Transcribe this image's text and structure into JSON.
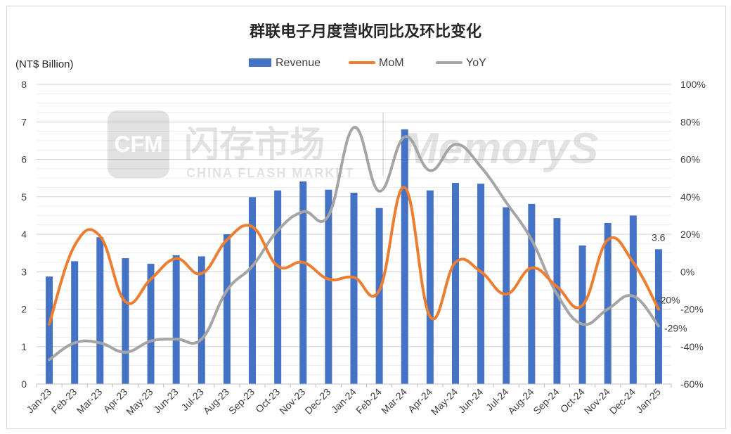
{
  "chart_data": {
    "type": "bar",
    "title": "群联电子月度营收同比及环比变化",
    "ylabel_left": "(NT$ Billion)",
    "categories": [
      "Jan-23",
      "Feb-23",
      "Mar-23",
      "Apr-23",
      "May-23",
      "Jun-23",
      "Jul-23",
      "Aug-23",
      "Sep-23",
      "Oct-23",
      "Nov-23",
      "Dec-23",
      "Jan-24",
      "Feb-24",
      "Mar-24",
      "Apr-24",
      "May-24",
      "Jun-24",
      "Jul-24",
      "Aug-24",
      "Sep-24",
      "Oct-24",
      "Nov-24",
      "Dec-24",
      "Jan-25"
    ],
    "series": [
      {
        "name": "Revenue",
        "type": "bar",
        "axis": "left",
        "color": "#4472c4",
        "values": [
          2.87,
          3.28,
          3.92,
          3.36,
          3.21,
          3.44,
          3.41,
          4.0,
          4.99,
          5.17,
          5.41,
          5.19,
          5.11,
          4.7,
          6.8,
          5.17,
          5.37,
          5.35,
          4.72,
          4.81,
          4.43,
          3.7,
          4.3,
          4.5,
          3.6
        ]
      },
      {
        "name": "MoM",
        "type": "line",
        "axis": "right",
        "color": "#ed7d31",
        "values": [
          -28,
          14,
          19,
          -16,
          -4,
          7,
          -1,
          17,
          24,
          3,
          5,
          -4,
          -3,
          -10,
          45,
          -24,
          5,
          0,
          -12,
          2,
          -8,
          -18,
          17,
          5,
          -20
        ]
      },
      {
        "name": "YoY",
        "type": "line",
        "axis": "right",
        "color": "#a5a5a5",
        "values": [
          -47,
          -38,
          -38,
          -43,
          -37,
          -36,
          -36,
          -10,
          3,
          22,
          32,
          30,
          77,
          43,
          72,
          54,
          68,
          56,
          37,
          17,
          -12,
          -28,
          -20,
          -13,
          -29
        ]
      }
    ],
    "ylim_left": [
      0,
      8
    ],
    "yticks_left": [
      "0",
      "1",
      "2",
      "3",
      "4",
      "5",
      "6",
      "7",
      "8"
    ],
    "ylim_right": [
      -60,
      100
    ],
    "yticks_right": [
      "-60%",
      "-40%",
      "-20%",
      "0%",
      "20%",
      "40%",
      "60%",
      "80%",
      "100%"
    ],
    "data_labels": {
      "revenue_last": "3.6",
      "mom_last": "-20%",
      "yoy_last": "-29%"
    },
    "legend_position": "top",
    "grid": true
  },
  "watermark": {
    "logo": "CFM",
    "cn": "闪存市场",
    "en": "CHINA FLASH MARKET",
    "brand": "MemoryS"
  }
}
